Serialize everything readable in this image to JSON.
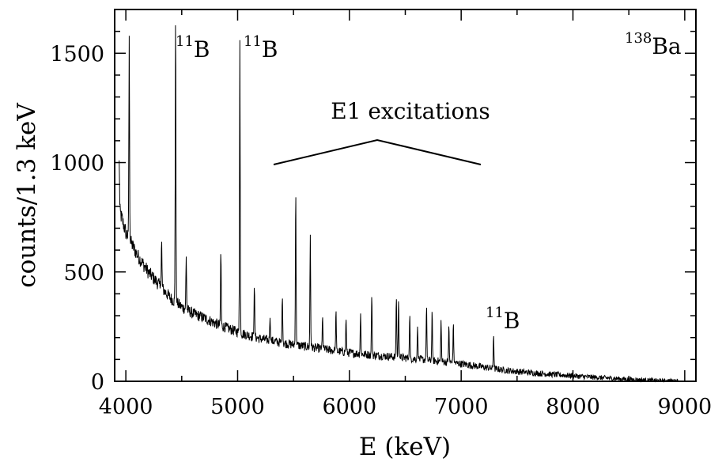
{
  "chart_data": {
    "type": "line",
    "title": "",
    "xlabel": "E (keV)",
    "ylabel": "counts/1.3 keV",
    "xlim": [
      3900,
      9100
    ],
    "ylim": [
      0,
      1700
    ],
    "x_ticks": [
      4000,
      5000,
      6000,
      7000,
      8000,
      9000
    ],
    "x_tick_labels": [
      "4000",
      "5000",
      "6000",
      "7000",
      "8000",
      "9000"
    ],
    "y_ticks": [
      0,
      500,
      1000,
      1500
    ],
    "y_tick_labels": [
      "0",
      "500",
      "1000",
      "1500"
    ],
    "grid": false,
    "legend": "none",
    "series": [
      {
        "background": {
          "x": [
            3900,
            4000,
            4100,
            4200,
            4300,
            4400,
            4500,
            4600,
            4700,
            4800,
            4900,
            5000,
            5200,
            5400,
            5600,
            5800,
            6000,
            6200,
            6400,
            6600,
            6800,
            7000,
            7200,
            7400,
            7600,
            7800,
            8000,
            8200,
            8400,
            8600,
            8800,
            9000
          ],
          "y": [
            860,
            680,
            580,
            500,
            440,
            380,
            340,
            310,
            290,
            265,
            245,
            225,
            195,
            175,
            160,
            145,
            130,
            120,
            112,
            102,
            92,
            80,
            65,
            50,
            40,
            32,
            25,
            18,
            12,
            7,
            3,
            2
          ]
        },
        "peaks": {
          "x": [
            3940,
            4030,
            4320,
            4445,
            4540,
            4850,
            5020,
            5150,
            5290,
            5400,
            5520,
            5650,
            5760,
            5880,
            5970,
            6100,
            6200,
            6420,
            6440,
            6540,
            6610,
            6690,
            6740,
            6820,
            6890,
            6930,
            7290
          ],
          "y": [
            1010,
            1580,
            650,
            1700,
            570,
            600,
            1560,
            440,
            290,
            390,
            880,
            670,
            300,
            330,
            290,
            310,
            400,
            390,
            380,
            310,
            250,
            350,
            330,
            280,
            260,
            270,
            215
          ]
        }
      }
    ],
    "annotations": {
      "b11_a": "11",
      "b11_b": "11",
      "b11_c": "11",
      "ba138": "138",
      "b_text": "B",
      "ba_text": "Ba",
      "e1_label": "E1 excitations"
    },
    "colors": {
      "line": "#000000",
      "axes": "#000000"
    }
  }
}
